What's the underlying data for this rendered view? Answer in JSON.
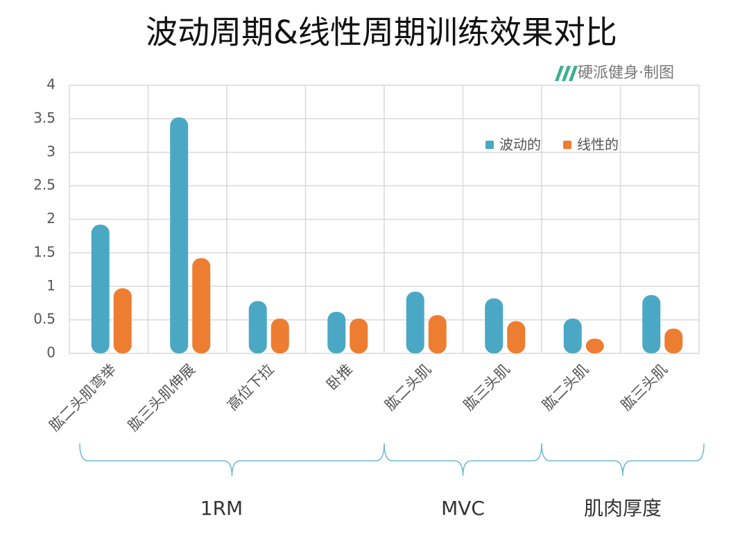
{
  "chart_data": {
    "type": "bar",
    "title": "波动周期&线性周期训练效果对比",
    "credit": "硬派健身·制图",
    "categories": [
      "肱二头肌弯举",
      "肱三头肌伸展",
      "高位下拉",
      "卧推",
      "肱二头肌",
      "肱三头肌",
      "肱二头肌",
      "肱三头肌"
    ],
    "series": [
      {
        "name": "波动的",
        "color": "#4aa8c4",
        "values": [
          1.92,
          3.52,
          0.78,
          0.62,
          0.92,
          0.82,
          0.52,
          0.87
        ]
      },
      {
        "name": "线性的",
        "color": "#ed7d31",
        "values": [
          0.97,
          1.42,
          0.52,
          0.52,
          0.57,
          0.48,
          0.22,
          0.37
        ]
      }
    ],
    "groups": [
      {
        "label": "1RM",
        "span": 4
      },
      {
        "label": "MVC",
        "span": 2
      },
      {
        "label": "肌肉厚度",
        "span": 2
      }
    ],
    "ylim": [
      0,
      4
    ],
    "yticks": [
      0,
      {
        "value": 0.5,
        "label": "0.5"
      },
      1,
      {
        "value": 1.5,
        "label": "1.5"
      },
      2,
      {
        "value": 2.5,
        "label": "2.5"
      },
      3,
      {
        "value": 3.5,
        "label": "3.5"
      },
      4
    ],
    "grid": true
  }
}
